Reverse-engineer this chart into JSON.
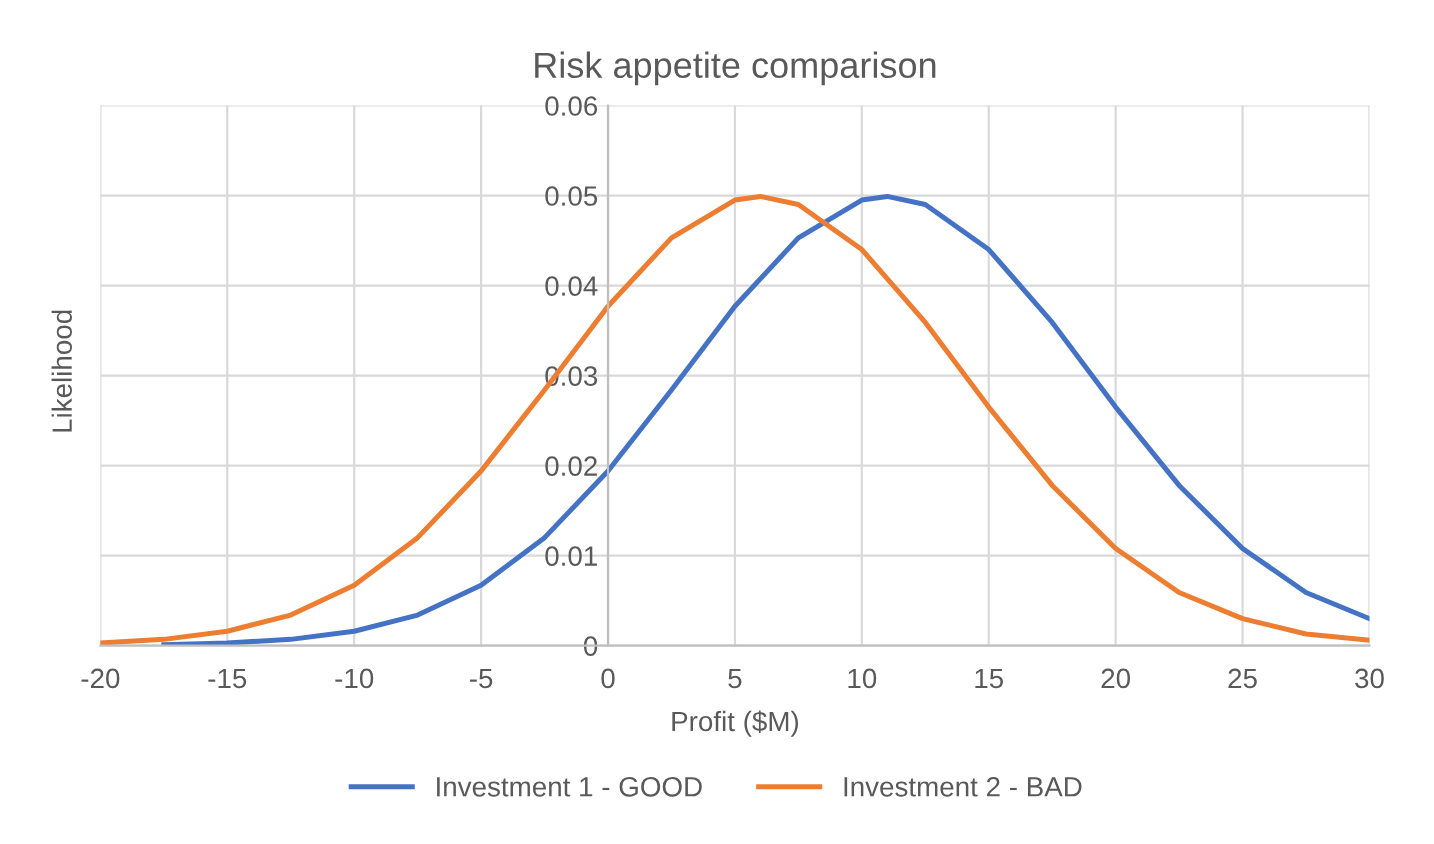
{
  "chart_data": {
    "type": "line",
    "title": "Risk appetite comparison",
    "xlabel": "Profit ($M)",
    "ylabel": "Likelihood",
    "xlim": [
      -20,
      30
    ],
    "xticks": [
      -20,
      -15,
      -10,
      -5,
      0,
      5,
      10,
      15,
      20,
      25,
      30
    ],
    "ylim": [
      0,
      0.06
    ],
    "yticks": [
      0,
      0.01,
      0.02,
      0.03,
      0.04,
      0.05,
      0.06
    ],
    "grid": true,
    "legend": "bottom",
    "marker": "none",
    "line_style": "solid",
    "series": [
      {
        "name": "Investment 1 - GOOD",
        "color": "#4472c4",
        "x": [
          -17.5,
          -15,
          -12.5,
          -10,
          -7.5,
          -5,
          -2.5,
          0,
          2.5,
          5,
          7.5,
          10,
          11,
          12.5,
          15,
          17.5,
          20,
          22.5,
          25,
          27.5,
          30
        ],
        "values": [
          0.0001,
          0.0003,
          0.0007,
          0.0016,
          0.0034,
          0.0067,
          0.012,
          0.0194,
          0.0284,
          0.0377,
          0.0453,
          0.0495,
          0.0499,
          0.049,
          0.044,
          0.0359,
          0.0265,
          0.0178,
          0.0108,
          0.0059,
          0.003
        ]
      },
      {
        "name": "Investment 2 - BAD",
        "color": "#ed7d31",
        "x": [
          -20,
          -17.5,
          -15,
          -12.5,
          -10,
          -7.5,
          -5,
          -2.5,
          0,
          2.5,
          5,
          6,
          7.5,
          10,
          12.5,
          15,
          17.5,
          20,
          22.5,
          25,
          27.5,
          30
        ],
        "values": [
          0.0003,
          0.0007,
          0.0016,
          0.0034,
          0.0067,
          0.012,
          0.0194,
          0.0284,
          0.0377,
          0.0453,
          0.0495,
          0.0499,
          0.049,
          0.044,
          0.0359,
          0.0265,
          0.0178,
          0.0108,
          0.0059,
          0.003,
          0.0013,
          0.0006
        ]
      }
    ]
  }
}
